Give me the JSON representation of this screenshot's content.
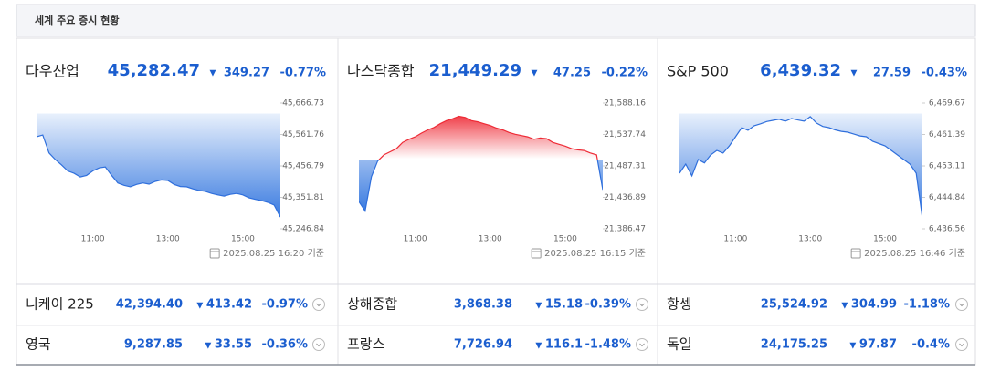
{
  "header": {
    "title": "세계 주요 증시 현황"
  },
  "chart_data": [
    {
      "type": "line",
      "title": "다우산업",
      "price": "45,282.47",
      "arrow": "▼",
      "change": "349.27",
      "change_pct": "-0.77%",
      "timestamp": "2025.08.25 16:20 기준",
      "colors": {
        "down": "#2f6fdc",
        "up": "#ee2b36"
      },
      "xlim": [
        "09:30",
        "16:00"
      ],
      "xticks": [
        "11:00",
        "13:00",
        "15:00"
      ],
      "ylim": [
        45246.84,
        45666.73
      ],
      "yticks": [
        {
          "value": 45246.84,
          "label": "45,246.84"
        },
        {
          "value": 45351.81,
          "label": "45,351.81"
        },
        {
          "value": 45456.79,
          "label": "45,456.79"
        },
        {
          "value": 45561.76,
          "label": "45,561.76"
        },
        {
          "value": 45666.73,
          "label": "45,666.73"
        }
      ],
      "x": [
        "09:30",
        "09:40",
        "09:50",
        "10:00",
        "10:10",
        "10:20",
        "10:30",
        "10:40",
        "10:50",
        "11:00",
        "11:10",
        "11:20",
        "11:30",
        "11:40",
        "11:50",
        "12:00",
        "12:10",
        "12:20",
        "12:30",
        "12:40",
        "12:50",
        "13:00",
        "13:10",
        "13:20",
        "13:30",
        "13:40",
        "13:50",
        "14:00",
        "14:10",
        "14:20",
        "14:30",
        "14:40",
        "14:50",
        "15:00",
        "15:10",
        "15:20",
        "15:30",
        "15:40",
        "15:50",
        "16:00"
      ],
      "values": [
        45554,
        45560,
        45500,
        45478,
        45460,
        45440,
        45432,
        45420,
        45425,
        45440,
        45450,
        45453,
        45425,
        45400,
        45392,
        45387,
        45395,
        45400,
        45396,
        45405,
        45410,
        45408,
        45395,
        45388,
        45387,
        45380,
        45375,
        45372,
        45365,
        45360,
        45356,
        45362,
        45365,
        45360,
        45350,
        45345,
        45341,
        45335,
        45326,
        45286
      ]
    },
    {
      "type": "line",
      "title": "나스닥종합",
      "price": "21,449.29",
      "arrow": "▼",
      "change": "47.25",
      "change_pct": "-0.22%",
      "timestamp": "2025.08.25 16:15 기준",
      "colors": {
        "down": "#2f6fdc",
        "up": "#ee2b36"
      },
      "xlim": [
        "09:30",
        "16:00"
      ],
      "xticks": [
        "11:00",
        "13:00",
        "15:00"
      ],
      "ylim": [
        21386.47,
        21588.16
      ],
      "yticks": [
        {
          "value": 21386.47,
          "label": "21,386.47"
        },
        {
          "value": 21436.89,
          "label": "21,436.89"
        },
        {
          "value": 21487.31,
          "label": "21,487.31"
        },
        {
          "value": 21537.74,
          "label": "21,537.74"
        },
        {
          "value": 21588.16,
          "label": "21,588.16"
        }
      ],
      "x": [
        "09:30",
        "09:40",
        "09:50",
        "10:00",
        "10:10",
        "10:20",
        "10:30",
        "10:40",
        "10:50",
        "11:00",
        "11:10",
        "11:20",
        "11:30",
        "11:40",
        "11:50",
        "12:00",
        "12:10",
        "12:20",
        "12:30",
        "12:40",
        "12:50",
        "13:00",
        "13:10",
        "13:20",
        "13:30",
        "13:40",
        "13:50",
        "14:00",
        "14:10",
        "14:20",
        "14:30",
        "14:40",
        "14:50",
        "15:00",
        "15:10",
        "15:20",
        "15:30",
        "15:40",
        "15:50",
        "16:00"
      ],
      "values": [
        21430,
        21415,
        21470,
        21495,
        21505,
        21510,
        21515,
        21525,
        21530,
        21534,
        21540,
        21545,
        21549,
        21555,
        21560,
        21563,
        21567,
        21565,
        21560,
        21558,
        21555,
        21552,
        21548,
        21545,
        21541,
        21538,
        21536,
        21534,
        21530,
        21532,
        21531,
        21525,
        21522,
        21519,
        21515,
        21513,
        21512,
        21508,
        21505,
        21449
      ]
    },
    {
      "type": "line",
      "title": "S&P 500",
      "price": "6,439.32",
      "arrow": "▼",
      "change": "27.59",
      "change_pct": "-0.43%",
      "timestamp": "2025.08.25 16:46 기준",
      "colors": {
        "down": "#2f6fdc",
        "up": "#ee2b36"
      },
      "xlim": [
        "09:30",
        "16:00"
      ],
      "xticks": [
        "11:00",
        "13:00",
        "15:00"
      ],
      "ylim": [
        6436.56,
        6469.67
      ],
      "yticks": [
        {
          "value": 6436.56,
          "label": "6,436.56"
        },
        {
          "value": 6444.84,
          "label": "6,444.84"
        },
        {
          "value": 6453.11,
          "label": "6,453.11"
        },
        {
          "value": 6461.39,
          "label": "6,461.39"
        },
        {
          "value": 6469.67,
          "label": "6,469.67"
        }
      ],
      "x": [
        "09:30",
        "09:40",
        "09:50",
        "10:00",
        "10:10",
        "10:20",
        "10:30",
        "10:40",
        "10:50",
        "11:00",
        "11:10",
        "11:20",
        "11:30",
        "11:40",
        "11:50",
        "12:00",
        "12:10",
        "12:20",
        "12:30",
        "12:40",
        "12:50",
        "13:00",
        "13:10",
        "13:20",
        "13:30",
        "13:40",
        "13:50",
        "14:00",
        "14:10",
        "14:20",
        "14:30",
        "14:40",
        "14:50",
        "15:00",
        "15:10",
        "15:20",
        "15:30",
        "15:40",
        "15:50",
        "16:00"
      ],
      "values": [
        6451.2,
        6453.6,
        6450.5,
        6454.8,
        6453.9,
        6456.0,
        6457.2,
        6456.5,
        6458.4,
        6460.8,
        6463.2,
        6462.5,
        6463.7,
        6464.2,
        6464.8,
        6465.1,
        6465.4,
        6464.9,
        6465.6,
        6465.2,
        6464.9,
        6466.1,
        6464.4,
        6463.5,
        6463.2,
        6462.6,
        6462.2,
        6462.0,
        6461.5,
        6461.0,
        6460.8,
        6459.6,
        6459.0,
        6458.4,
        6457.2,
        6456.0,
        6454.8,
        6453.6,
        6451.2,
        6439.3
      ]
    }
  ],
  "others": [
    {
      "name": "니케이 225",
      "price": "42,394.40",
      "arrow": "▼",
      "change": "413.42",
      "change_pct": "-0.97%"
    },
    {
      "name": "상해종합",
      "price": "3,868.38",
      "arrow": "▼",
      "change": "15.18",
      "change_pct": "-0.39%"
    },
    {
      "name": "항셍",
      "price": "25,524.92",
      "arrow": "▼",
      "change": "304.99",
      "change_pct": "-1.18%"
    },
    {
      "name": "영국",
      "price": "9,287.85",
      "arrow": "▼",
      "change": "33.55",
      "change_pct": "-0.36%"
    },
    {
      "name": "프랑스",
      "price": "7,726.94",
      "arrow": "▼",
      "change": "116.1",
      "change_pct": "-1.48%"
    },
    {
      "name": "독일",
      "price": "24,175.25",
      "arrow": "▼",
      "change": "97.87",
      "change_pct": "-0.4%"
    }
  ]
}
